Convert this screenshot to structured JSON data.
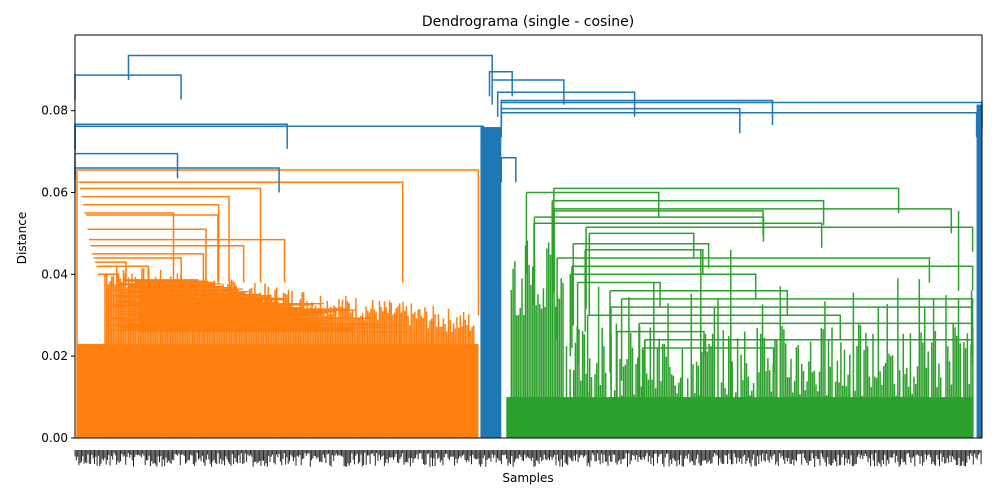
{
  "chart_data": {
    "type": "dendrogram",
    "title": "Dendrograma (single - cosine)",
    "xlabel": "Samples",
    "ylabel": "Distance",
    "ylim": [
      0,
      0.0985
    ],
    "yticks": [
      0.0,
      0.02,
      0.04,
      0.06,
      0.08
    ],
    "ytick_labels": [
      "0.00",
      "0.02",
      "0.04",
      "0.06",
      "0.08"
    ],
    "colors": {
      "orange": "#ff7f0e",
      "green": "#2ca02c",
      "blue": "#1f77b4"
    },
    "clusters": [
      {
        "name": "orange",
        "x_start": 0.0,
        "x_end": 0.447,
        "base_height": 0.035,
        "top_height": 0.0655
      },
      {
        "name": "blue-dense",
        "x_start": 0.447,
        "x_end": 0.47,
        "base_height": 0.0,
        "top_height": 0.0765
      },
      {
        "name": "green",
        "x_start": 0.47,
        "x_end": 0.994,
        "base_height": 0.0,
        "top_height": 0.0805
      },
      {
        "name": "blue-right",
        "x_start": 0.994,
        "x_end": 1.0,
        "base_height": 0.0,
        "top_height": 0.082
      }
    ],
    "top_links": [
      {
        "x1": 0.059,
        "x2": 0.46,
        "h": 0.0935
      },
      {
        "x1": 0.0,
        "x2": 0.117,
        "h": 0.0887
      },
      {
        "x1": 0.0,
        "x2": 0.234,
        "h": 0.0767
      },
      {
        "x1": 0.0,
        "x2": 0.45,
        "h": 0.0762
      },
      {
        "x1": 0.0,
        "x2": 0.113,
        "h": 0.0695
      },
      {
        "x1": 0.0,
        "x2": 0.225,
        "h": 0.066
      },
      {
        "x1": 0.457,
        "x2": 0.482,
        "h": 0.0895
      },
      {
        "x1": 0.46,
        "x2": 0.539,
        "h": 0.0875
      },
      {
        "x1": 0.466,
        "x2": 0.617,
        "h": 0.0845
      },
      {
        "x1": 0.47,
        "x2": 0.769,
        "h": 0.0825
      },
      {
        "x1": 0.47,
        "x2": 1.0,
        "h": 0.082
      },
      {
        "x1": 0.47,
        "x2": 0.733,
        "h": 0.0805
      },
      {
        "x1": 0.47,
        "x2": 0.994,
        "h": 0.0795
      },
      {
        "x1": 0.47,
        "x2": 0.486,
        "h": 0.0685
      }
    ],
    "x_tick_labels_note": "dense unreadable sample index labels"
  }
}
